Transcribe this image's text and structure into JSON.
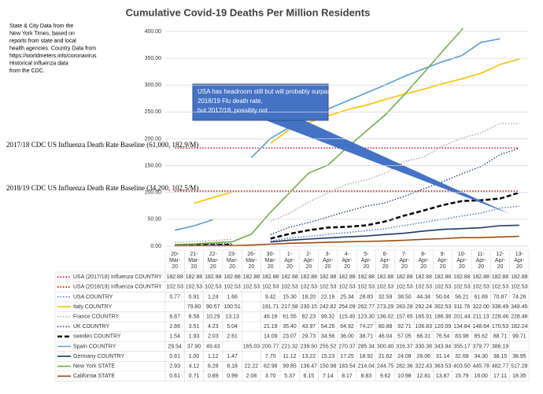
{
  "chart_data": {
    "type": "line",
    "title": "Cumulative Covid-19 Deaths Per Million Residents",
    "note_lines": [
      "State & City Data from the",
      "New York Times, based on",
      "reports from state and  local",
      "health agencies. Country Data from",
      "https://worldmeters.info/coronavirus",
      "Historical Influenza data",
      "from the CDC."
    ],
    "callout_lines": [
      "USA has headroom still but will probably surpass",
      "2018/19  Flu death rate,",
      "but 2017/18,  possibly not"
    ],
    "baseline_labels": [
      {
        "text": "2017/18  CDC US Influenza Death Rate Baseline (61,000, 182.9/M)",
        "value": 182.88
      },
      {
        "text": "2018/19  CDC US Influenza Death Rate Baseline (34,200, 102.5/M)",
        "value": 102.53
      }
    ],
    "categories": [
      "20-Mar-20",
      "21-Mar-20",
      "22-Mar-20",
      "23-Mar-20",
      "26-Mar-20",
      "30-Mar-20",
      "1-Apr-20",
      "2-Apr-20",
      "3-Apr-20",
      "4-Apr-20",
      "5-Apr-20",
      "6-Apr-20",
      "7-Apr-20",
      "8-Apr-20",
      "9-Apr-20",
      "10-Apr-20",
      "11-Apr-20",
      "12-Apr-20",
      "13-Apr-20"
    ],
    "ylim": [
      0,
      400
    ],
    "yticks": [
      {
        "value": 0,
        "label": "0.00"
      },
      {
        "value": 50,
        "label": "50.00"
      },
      {
        "value": 100,
        "label": "100.00"
      },
      {
        "value": 150,
        "label": "150.00"
      },
      {
        "value": 200,
        "label": "200.00"
      },
      {
        "value": 250,
        "label": "250.00"
      },
      {
        "value": 300,
        "label": "300.00"
      },
      {
        "value": 350,
        "label": "350.00"
      },
      {
        "value": 400,
        "label": "400.00"
      }
    ],
    "grid": true,
    "series": [
      {
        "name": "USA (2017/18) Influenza COUNTRY",
        "color": "#c00000",
        "dash": "dotted",
        "values": [
          182.88,
          182.88,
          182.88,
          182.88,
          182.88,
          182.88,
          182.88,
          182.88,
          182.88,
          182.88,
          182.88,
          182.88,
          182.88,
          182.88,
          182.88,
          182.88,
          182.88,
          182.88,
          182.88
        ]
      },
      {
        "name": "USA (2018/19) Influenza COUNTRY",
        "color": "#c00000",
        "dash": "dotted",
        "values": [
          102.53,
          102.53,
          102.53,
          102.53,
          102.53,
          102.53,
          102.53,
          102.53,
          102.53,
          102.53,
          102.53,
          102.53,
          102.53,
          102.53,
          102.53,
          102.53,
          102.53,
          102.53,
          102.53
        ]
      },
      {
        "name": "USA COUNTRY",
        "color": "#4472c4",
        "dash": "dotted",
        "values": [
          0.77,
          0.91,
          1.24,
          1.66,
          null,
          9.42,
          15.3,
          18.2,
          22.16,
          25.34,
          28.83,
          32.59,
          38.5,
          44.34,
          50.04,
          56.21,
          61.69,
          70.87,
          74.26
        ],
        "value_labels": [
          "0.77",
          "0.91",
          "1.24",
          "1.66",
          null,
          "9.42",
          "15.30",
          "18.20",
          "22.16",
          "25.34",
          "28.83",
          "32.59",
          "38.50",
          "44.34",
          "50.04",
          "56.21",
          "61.69",
          "70.87",
          "74.26"
        ]
      },
      {
        "name": "Italy COUNTRY",
        "color": "#ffc000",
        "dash": "solid",
        "values": [
          null,
          79.8,
          90.57,
          100.51,
          null,
          191.71,
          217.58,
          230.15,
          242.82,
          254.09,
          262.77,
          273.29,
          283.28,
          292.24,
          302.53,
          311.76,
          322,
          338.49,
          348.45
        ],
        "value_labels": [
          null,
          "79.80",
          "90.57",
          "100.51",
          null,
          "191.71",
          "217.58",
          "230.15",
          "242.82",
          "254.09",
          "262.77",
          "273.29",
          "283.28",
          "292.24",
          "302.53",
          "311.76",
          "322.00",
          "338.49",
          "348.45"
        ]
      },
      {
        "name": "France COUNTRY",
        "color": "#a5a5a5",
        "dash": "dotted",
        "values": [
          6.87,
          8.58,
          10.29,
          13.13,
          null,
          46.16,
          61.55,
          82.23,
          99.32,
          115.4,
          123.3,
          136.02,
          157.65,
          165.91,
          186.38,
          201.44,
          211.13,
          228.46,
          228.46
        ],
        "value_labels": [
          "6.87",
          "8.58",
          "10.29",
          "13.13",
          null,
          "46.16",
          "61.55",
          "82.23",
          "99.32",
          "115.40",
          "123.30",
          "136.02",
          "157.65",
          "165.91",
          "186.38",
          "201.44",
          "211.13",
          "228.46",
          "228.46"
        ]
      },
      {
        "name": "UK COUNTRY",
        "color": "#264478",
        "dash": "dotted",
        "values": [
          2.66,
          3.51,
          4.23,
          5.04,
          null,
          21.19,
          35.4,
          43.97,
          54.26,
          64.92,
          74.27,
          80.88,
          92.71,
          106.83,
          120.09,
          134.84,
          148.64,
          170.53,
          182.24
        ],
        "value_labels": [
          "2.66",
          "3.51",
          "4.23",
          "5.04",
          null,
          "21.19",
          "35.40",
          "43.97",
          "54.26",
          "64.92",
          "74.27",
          "80.88",
          "92.71",
          "106.83",
          "120.09",
          "134.84",
          "148.64",
          "170.53",
          "182.24"
        ]
      },
      {
        "name": "sweden COUNTRY",
        "color": "#000000",
        "dash": "dashed",
        "values": [
          1.54,
          1.93,
          2.03,
          2.61,
          null,
          14.09,
          23.07,
          29.73,
          34.56,
          36,
          38.71,
          46.04,
          57.05,
          66.31,
          76.54,
          83.98,
          85.62,
          88.71,
          99.71
        ],
        "value_labels": [
          "1.54",
          "1.93",
          "2.03",
          "2.61",
          null,
          "14.09",
          "23.07",
          "29.73",
          "34.56",
          "36.00",
          "38.71",
          "46.04",
          "57.05",
          "66.31",
          "76.54",
          "83.98",
          "85.62",
          "88.71",
          "99.71"
        ]
      },
      {
        "name": "Spain COUNTRY",
        "color": "#5b9bd5",
        "dash": "solid",
        "values": [
          29.54,
          37.9,
          49.43,
          null,
          165.03,
          200.77,
          221.32,
          239.5,
          255.52,
          270.37,
          285.34,
          300.4,
          316.37,
          330.38,
          343.94,
          355.17,
          379.77,
          386.19,
          null
        ],
        "value_labels": [
          "29.54",
          "37.90",
          "49.43",
          null,
          "165.03",
          "200.77",
          "221.32",
          "239.50",
          "255.52",
          "270.37",
          "285.34",
          "300.40",
          "316.37",
          "330.38",
          "343.94",
          "355.17",
          "379.77",
          "386.19",
          null
        ]
      },
      {
        "name": "Germany COUNTRY",
        "color": "#1f3864",
        "dash": "solid",
        "values": [
          0.81,
          1,
          1.12,
          1.47,
          null,
          7.7,
          11.12,
          13.22,
          15.23,
          17.25,
          18.92,
          21.62,
          24.08,
          28.06,
          31.14,
          32.68,
          34.3,
          38.15,
          38.95
        ],
        "value_labels": [
          "0.81",
          "1.00",
          "1.12",
          "1.47",
          null,
          "7.70",
          "11.12",
          "13.22",
          "15.23",
          "17.25",
          "18.92",
          "21.62",
          "24.08",
          "28.06",
          "31.14",
          "32.68",
          "34.30",
          "38.15",
          "38.95"
        ]
      },
      {
        "name": "New York STATE",
        "color": "#70ad47",
        "dash": "solid",
        "values": [
          2.93,
          4.12,
          6.28,
          8.18,
          22.22,
          62.98,
          99.85,
          136.47,
          150.98,
          183.54,
          214.04,
          244.75,
          282.36,
          322.43,
          363.53,
          403.5,
          445.78,
          482.77,
          517.28
        ],
        "value_labels": [
          "2.93",
          "4.12",
          "6.28",
          "8.18",
          "22.22",
          "62.98",
          "99.85",
          "136.47",
          "150.98",
          "183.54",
          "214.04",
          "244.75",
          "282.36",
          "322.43",
          "363.53",
          "403.50",
          "445.78",
          "482.77",
          "517.28"
        ]
      },
      {
        "name": "California STATE",
        "color": "#9e480e",
        "dash": "solid",
        "values": [
          0.61,
          0.71,
          0.89,
          0.99,
          2.08,
          3.7,
          5.37,
          6.15,
          7.14,
          8.17,
          8.83,
          9.62,
          10.98,
          12.81,
          13.87,
          15.79,
          16,
          17.11,
          18.35
        ],
        "value_labels": [
          "0.61",
          "0.71",
          "0.89",
          "0.99",
          "2.08",
          "3.70",
          "5.37",
          "6.15",
          "7.14",
          "8.17",
          "8.83",
          "9.62",
          "10.98",
          "12.81",
          "13.87",
          "15.79",
          "16.00",
          "17.11",
          "18.35"
        ]
      }
    ]
  }
}
